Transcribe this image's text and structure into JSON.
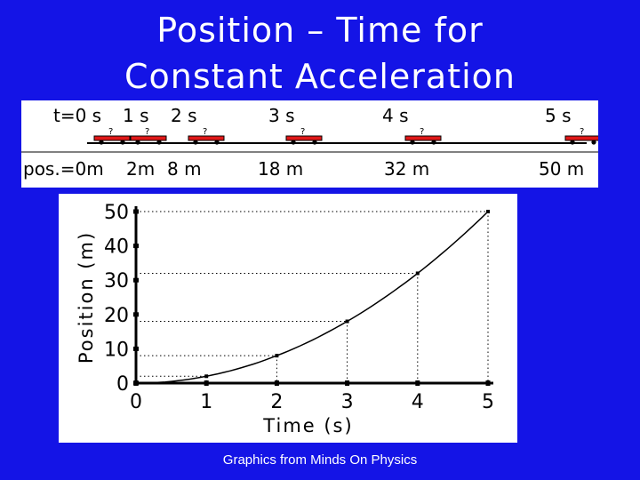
{
  "slide": {
    "title_line1": "Position – Time for",
    "title_line2": "Constant Acceleration",
    "credit": "Graphics from Minds On Physics"
  },
  "strip": {
    "time_labels": [
      "t=0 s",
      "1 s",
      "2 s",
      "3 s",
      "4 s",
      "5 s"
    ],
    "position_labels": [
      "pos.=0m",
      "2m",
      "8 m",
      "18 m",
      "32 m",
      "50 m"
    ],
    "car_icon": "car-icon"
  },
  "chart_data": {
    "type": "scatter",
    "title": "",
    "xlabel": "Time (s)",
    "ylabel": "Position (m)",
    "xlim": [
      0,
      5
    ],
    "ylim": [
      0,
      50
    ],
    "x_ticks": [
      "0",
      "1",
      "2",
      "3",
      "4",
      "5"
    ],
    "y_ticks": [
      "0",
      "10",
      "20",
      "30",
      "40",
      "50"
    ],
    "series": [
      {
        "x": [
          0,
          1,
          2,
          3,
          4,
          5
        ],
        "y": [
          0,
          2,
          8,
          18,
          32,
          50
        ]
      }
    ],
    "curve": "smooth",
    "guides": "dotted",
    "grid": false,
    "colors": {
      "ink": "#000000",
      "panel": "#ffffff",
      "background": "#1414e6"
    }
  }
}
